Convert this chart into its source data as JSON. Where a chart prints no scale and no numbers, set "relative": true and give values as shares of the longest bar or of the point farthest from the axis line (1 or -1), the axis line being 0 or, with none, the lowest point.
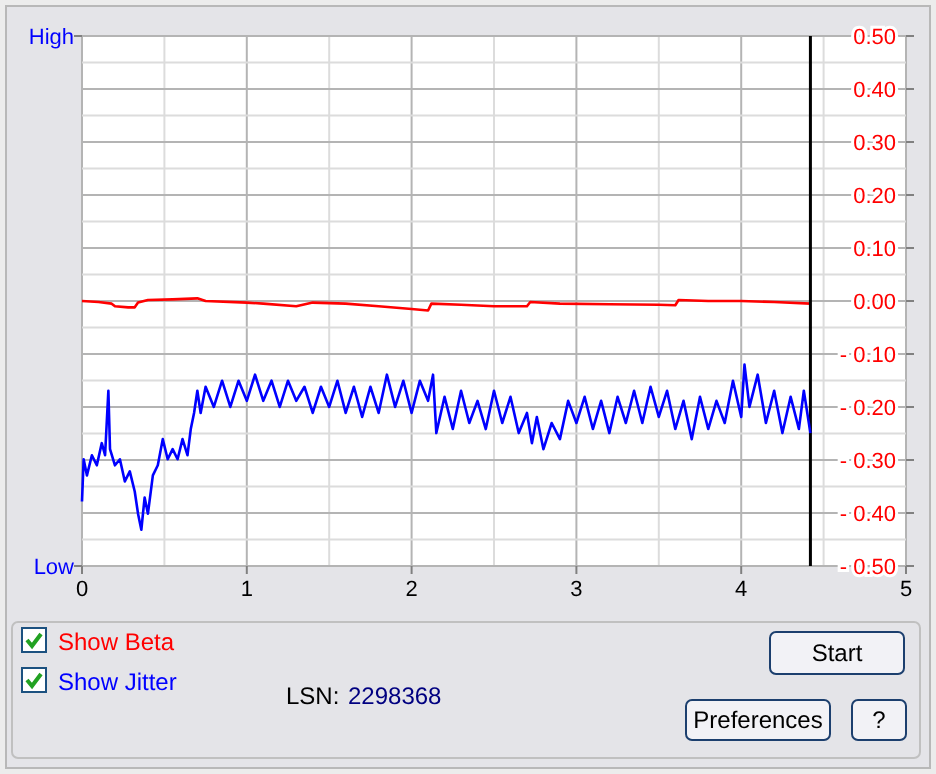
{
  "chart_data": [
    {
      "type": "line",
      "xlim": [
        0,
        5
      ],
      "xticks": [
        0,
        1,
        2,
        3,
        4,
        5
      ],
      "ylim": [
        -0.5,
        0.5
      ],
      "yticks": [
        {
          "value": 0.5,
          "label": "0.50"
        },
        {
          "value": 0.4,
          "label": "0.40"
        },
        {
          "value": 0.3,
          "label": "0.30"
        },
        {
          "value": 0.2,
          "label": "0.20"
        },
        {
          "value": 0.1,
          "label": "0.10"
        },
        {
          "value": 0,
          "label": "0.00"
        },
        {
          "value": -0.1,
          "label": "- 0.10"
        },
        {
          "value": -0.2,
          "label": "- 0.20"
        },
        {
          "value": -0.3,
          "label": "- 0.30"
        },
        {
          "value": -0.4,
          "label": "- 0.40"
        },
        {
          "value": -0.5,
          "label": "- 0.50"
        }
      ],
      "grid": true,
      "legend": "bottom left",
      "line_style": "solid",
      "marker": "none",
      "ref_lines": [
        {
          "axis": "x",
          "value": 4.42,
          "color": "#000000"
        }
      ],
      "series": [
        {
          "name": "Show Beta",
          "color": "#ff0000",
          "x": [
            0,
            0.1,
            0.18,
            0.2,
            0.28,
            0.32,
            0.34,
            0.4,
            0.55,
            0.7,
            0.75,
            1.0,
            1.1,
            1.3,
            1.4,
            1.6,
            1.8,
            2.0,
            2.1,
            2.12,
            2.3,
            2.5,
            2.7,
            2.72,
            2.9,
            3.2,
            3.5,
            3.6,
            3.62,
            3.8,
            4.0,
            4.2,
            4.42
          ],
          "values": [
            0,
            -0.002,
            -0.005,
            -0.01,
            -0.012,
            -0.012,
            -0.003,
            0.002,
            0.003,
            0.005,
            0,
            -0.003,
            -0.005,
            -0.01,
            -0.003,
            -0.005,
            -0.01,
            -0.015,
            -0.018,
            -0.005,
            -0.007,
            -0.01,
            -0.01,
            -0.002,
            -0.005,
            -0.006,
            -0.007,
            -0.008,
            0.002,
            0,
            0,
            -0.002,
            -0.005
          ]
        }
      ],
      "annotations": [
        "LSN:",
        "2298368",
        "Start",
        "Preferences",
        "?"
      ]
    },
    {
      "type": "line",
      "relative": true,
      "xlim": [
        0,
        5
      ],
      "legend": "bottom left",
      "line_style": "solid",
      "marker": "none",
      "series": [
        {
          "name": "Show Jitter",
          "color": "#0000ff",
          "x": [
            0,
            0.01,
            0.03,
            0.06,
            0.09,
            0.12,
            0.14,
            0.16,
            0.17,
            0.2,
            0.23,
            0.26,
            0.29,
            0.32,
            0.34,
            0.36,
            0.38,
            0.4,
            0.43,
            0.46,
            0.49,
            0.52,
            0.55,
            0.58,
            0.61,
            0.64,
            0.66,
            0.68,
            0.7,
            0.72,
            0.75,
            0.8,
            0.85,
            0.9,
            0.95,
            1.0,
            1.05,
            1.1,
            1.15,
            1.2,
            1.25,
            1.3,
            1.35,
            1.4,
            1.45,
            1.5,
            1.55,
            1.6,
            1.65,
            1.7,
            1.75,
            1.8,
            1.85,
            1.9,
            1.95,
            2.0,
            2.05,
            2.1,
            2.13,
            2.15,
            2.2,
            2.25,
            2.3,
            2.35,
            2.4,
            2.45,
            2.5,
            2.55,
            2.6,
            2.65,
            2.7,
            2.73,
            2.76,
            2.8,
            2.85,
            2.9,
            2.95,
            3.0,
            3.05,
            3.1,
            3.15,
            3.2,
            3.25,
            3.3,
            3.35,
            3.4,
            3.45,
            3.5,
            3.55,
            3.6,
            3.65,
            3.7,
            3.75,
            3.8,
            3.85,
            3.9,
            3.95,
            4.0,
            4.02,
            4.05,
            4.1,
            4.15,
            4.2,
            4.25,
            4.3,
            4.35,
            4.38,
            4.42
          ],
          "values": [
            0.32,
            0.53,
            0.45,
            0.55,
            0.5,
            0.61,
            0.55,
            0.87,
            0.58,
            0.5,
            0.53,
            0.42,
            0.47,
            0.37,
            0.26,
            0.18,
            0.34,
            0.26,
            0.45,
            0.5,
            0.63,
            0.53,
            0.58,
            0.53,
            0.63,
            0.55,
            0.68,
            0.76,
            0.87,
            0.76,
            0.89,
            0.79,
            0.92,
            0.79,
            0.92,
            0.82,
            0.95,
            0.82,
            0.92,
            0.79,
            0.92,
            0.82,
            0.89,
            0.76,
            0.89,
            0.79,
            0.92,
            0.76,
            0.89,
            0.74,
            0.89,
            0.76,
            0.95,
            0.79,
            0.92,
            0.76,
            0.92,
            0.82,
            0.95,
            0.66,
            0.84,
            0.68,
            0.87,
            0.71,
            0.82,
            0.68,
            0.87,
            0.71,
            0.84,
            0.66,
            0.76,
            0.61,
            0.74,
            0.58,
            0.71,
            0.63,
            0.82,
            0.71,
            0.84,
            0.68,
            0.82,
            0.66,
            0.84,
            0.71,
            0.87,
            0.71,
            0.89,
            0.74,
            0.87,
            0.68,
            0.82,
            0.63,
            0.84,
            0.68,
            0.82,
            0.71,
            0.92,
            0.74,
            1,
            0.79,
            0.95,
            0.71,
            0.87,
            0.66,
            0.84,
            0.68,
            0.87,
            0.66
          ]
        }
      ],
      "annotations": [
        "High",
        "Low"
      ]
    }
  ]
}
